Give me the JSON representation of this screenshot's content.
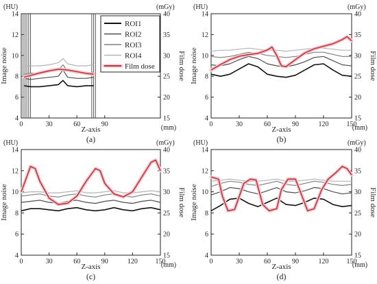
{
  "chart_data": [
    {
      "panel_label": "(a)",
      "type": "line",
      "xlabel": "Z-axis",
      "xunit": "(mm)",
      "ylabel": "Image noise",
      "yunit": "(HU)",
      "y2label": "Film dose",
      "y2unit": "(mGy)",
      "xlim": [
        0,
        150
      ],
      "ylim": [
        4,
        14
      ],
      "y2lim": [
        15,
        40
      ],
      "xticks": [
        "0",
        "30",
        "60",
        "90"
      ],
      "yticks": [
        "4",
        "6",
        "8",
        "10",
        "12",
        "14"
      ],
      "y2ticks": [
        "15",
        "20",
        "25",
        "30",
        "35",
        "40"
      ],
      "legend": {
        "position": "top-right",
        "entries": [
          "ROI1",
          "ROI2",
          "ROI3",
          "ROI4",
          "Film dose"
        ]
      },
      "markers_z": [
        2,
        4,
        6,
        8,
        10,
        76,
        78,
        80
      ],
      "series": [
        {
          "name": "ROI1",
          "axis": "left",
          "color": "#111111",
          "width": 1.6,
          "x": [
            3,
            10,
            20,
            30,
            40,
            45,
            50,
            60,
            70,
            78
          ],
          "y": [
            7.1,
            7.0,
            7.0,
            7.1,
            7.2,
            7.6,
            7.1,
            7.0,
            7.1,
            7.1
          ]
        },
        {
          "name": "ROI2",
          "axis": "left",
          "color": "#4d4d4d",
          "width": 1.2,
          "x": [
            3,
            10,
            20,
            30,
            40,
            45,
            50,
            60,
            70,
            78
          ],
          "y": [
            7.8,
            7.7,
            7.8,
            7.9,
            8.0,
            8.6,
            7.9,
            7.8,
            7.8,
            7.9
          ]
        },
        {
          "name": "ROI3",
          "axis": "left",
          "color": "#7f7f7f",
          "width": 1.2,
          "x": [
            3,
            10,
            20,
            30,
            40,
            45,
            50,
            60,
            70,
            78
          ],
          "y": [
            8.2,
            8.3,
            8.3,
            8.4,
            8.6,
            9.1,
            8.5,
            8.3,
            8.3,
            8.4
          ]
        },
        {
          "name": "ROI4",
          "axis": "left",
          "color": "#b3b3b3",
          "width": 1.2,
          "x": [
            3,
            10,
            20,
            30,
            40,
            45,
            50,
            60,
            70,
            78
          ],
          "y": [
            8.9,
            9.0,
            9.0,
            9.1,
            9.3,
            9.7,
            9.2,
            9.0,
            9.0,
            9.1
          ]
        },
        {
          "name": "Film dose",
          "axis": "right",
          "color": "#c0392b",
          "width": 1.6,
          "x": [
            3,
            10,
            20,
            30,
            40,
            50,
            60,
            70,
            78
          ],
          "y": [
            24.8,
            25.2,
            25.8,
            26.3,
            26.7,
            26.5,
            26.1,
            25.7,
            25.5
          ]
        }
      ]
    },
    {
      "panel_label": "(b)",
      "type": "line",
      "xlabel": "Z-axis",
      "xunit": "(mm)",
      "ylabel": "Image noise",
      "yunit": "(HU)",
      "y2label": "Film dose",
      "y2unit": "(mGy)",
      "xlim": [
        0,
        150
      ],
      "ylim": [
        4,
        14
      ],
      "y2lim": [
        15,
        40
      ],
      "xticks": [
        "0",
        "30",
        "60",
        "90",
        "120",
        "150"
      ],
      "yticks": [
        "4",
        "6",
        "8",
        "10",
        "12",
        "14"
      ],
      "y2ticks": [
        "15",
        "20",
        "25",
        "30",
        "35",
        "40"
      ],
      "series": [
        {
          "name": "ROI1",
          "axis": "left",
          "color": "#111111",
          "width": 1.6,
          "x": [
            0,
            10,
            20,
            30,
            40,
            50,
            60,
            70,
            80,
            90,
            100,
            110,
            120,
            130,
            140,
            150
          ],
          "y": [
            8.2,
            8.0,
            8.2,
            8.7,
            9.2,
            8.9,
            8.2,
            8.0,
            7.9,
            8.1,
            8.6,
            9.1,
            9.2,
            8.6,
            8.1,
            8.0
          ]
        },
        {
          "name": "ROI2",
          "axis": "left",
          "color": "#4d4d4d",
          "width": 1.2,
          "x": [
            0,
            10,
            20,
            30,
            40,
            50,
            60,
            70,
            80,
            90,
            100,
            110,
            120,
            130,
            140,
            150
          ],
          "y": [
            9.1,
            9.0,
            9.2,
            9.6,
            9.9,
            9.7,
            9.2,
            9.0,
            8.9,
            9.1,
            9.4,
            9.8,
            9.9,
            9.5,
            9.1,
            9.0
          ]
        },
        {
          "name": "ROI3",
          "axis": "left",
          "color": "#7f7f7f",
          "width": 1.2,
          "x": [
            0,
            10,
            20,
            30,
            40,
            50,
            60,
            70,
            80,
            90,
            100,
            110,
            120,
            130,
            140,
            150
          ],
          "y": [
            9.9,
            9.8,
            9.9,
            10.1,
            10.3,
            10.2,
            10.0,
            9.9,
            9.8,
            9.9,
            10.1,
            10.3,
            10.3,
            10.1,
            9.9,
            9.9
          ]
        },
        {
          "name": "ROI4",
          "axis": "left",
          "color": "#b3b3b3",
          "width": 1.2,
          "x": [
            0,
            10,
            20,
            30,
            40,
            50,
            60,
            70,
            80,
            90,
            100,
            110,
            120,
            130,
            140,
            150
          ],
          "y": [
            10.4,
            10.5,
            10.5,
            10.6,
            10.7,
            10.6,
            10.5,
            10.5,
            10.4,
            10.5,
            10.6,
            10.7,
            10.7,
            10.6,
            10.5,
            10.5
          ]
        },
        {
          "name": "Film dose",
          "axis": "right",
          "color": "#c0392b",
          "width": 1.6,
          "x": [
            0,
            10,
            20,
            30,
            40,
            50,
            60,
            65,
            70,
            75,
            80,
            90,
            100,
            110,
            120,
            130,
            140,
            145,
            150
          ],
          "y": [
            26.5,
            27.8,
            29.0,
            29.8,
            30.2,
            30.5,
            31.3,
            32.0,
            30.0,
            27.5,
            27.3,
            29.0,
            30.6,
            31.6,
            32.2,
            32.8,
            33.8,
            34.5,
            33.5
          ]
        }
      ]
    },
    {
      "panel_label": "(c)",
      "type": "line",
      "xlabel": "Z-axis",
      "xunit": "(mm)",
      "ylabel": "Image noise",
      "yunit": "(HU)",
      "y2label": "Film dose",
      "y2unit": "(mGy)",
      "xlim": [
        0,
        150
      ],
      "ylim": [
        4,
        14
      ],
      "y2lim": [
        15,
        40
      ],
      "xticks": [
        "0",
        "30",
        "60",
        "90",
        "120",
        "150"
      ],
      "yticks": [
        "4",
        "6",
        "8",
        "10",
        "12",
        "14"
      ],
      "y2ticks": [
        "15",
        "20",
        "25",
        "30",
        "35",
        "40"
      ],
      "series": [
        {
          "name": "ROI1",
          "axis": "left",
          "color": "#111111",
          "width": 1.6,
          "x": [
            0,
            10,
            20,
            30,
            40,
            50,
            60,
            70,
            80,
            90,
            100,
            110,
            120,
            130,
            140,
            150
          ],
          "y": [
            8.2,
            8.4,
            8.4,
            8.3,
            8.2,
            8.4,
            8.5,
            8.3,
            8.2,
            8.3,
            8.5,
            8.3,
            8.2,
            8.4,
            8.5,
            8.3
          ]
        },
        {
          "name": "ROI2",
          "axis": "left",
          "color": "#4d4d4d",
          "width": 1.2,
          "x": [
            0,
            10,
            20,
            30,
            40,
            50,
            60,
            70,
            80,
            90,
            100,
            110,
            120,
            130,
            140,
            150
          ],
          "y": [
            9.0,
            9.1,
            9.2,
            9.0,
            8.9,
            9.1,
            9.2,
            9.0,
            8.9,
            9.1,
            9.2,
            9.0,
            8.9,
            9.1,
            9.2,
            9.0
          ]
        },
        {
          "name": "ROI3",
          "axis": "left",
          "color": "#7f7f7f",
          "width": 1.2,
          "x": [
            0,
            10,
            20,
            30,
            40,
            50,
            60,
            70,
            80,
            90,
            100,
            110,
            120,
            130,
            140,
            150
          ],
          "y": [
            9.6,
            9.7,
            9.8,
            9.6,
            9.5,
            9.7,
            9.8,
            9.6,
            9.5,
            9.7,
            9.8,
            9.6,
            9.5,
            9.7,
            9.8,
            9.6
          ]
        },
        {
          "name": "ROI4",
          "axis": "left",
          "color": "#b3b3b3",
          "width": 1.2,
          "x": [
            0,
            10,
            20,
            30,
            40,
            50,
            60,
            70,
            80,
            90,
            100,
            110,
            120,
            130,
            140,
            150
          ],
          "y": [
            9.9,
            10.0,
            10.0,
            9.9,
            9.9,
            10.0,
            10.1,
            9.9,
            9.9,
            10.0,
            10.1,
            9.9,
            9.9,
            10.0,
            10.1,
            10.0
          ]
        },
        {
          "name": "Film dose",
          "axis": "right",
          "color": "#c0392b",
          "width": 1.6,
          "x": [
            0,
            5,
            10,
            15,
            20,
            30,
            40,
            50,
            60,
            70,
            80,
            85,
            90,
            100,
            110,
            120,
            130,
            140,
            145,
            150
          ],
          "y": [
            30.0,
            33.0,
            36.0,
            35.5,
            32.5,
            28.5,
            27.0,
            27.3,
            29.0,
            32.5,
            35.5,
            35.0,
            32.0,
            29.5,
            28.8,
            30.0,
            33.5,
            37.0,
            37.5,
            35.0
          ]
        }
      ]
    },
    {
      "panel_label": "(d)",
      "type": "line",
      "xlabel": "Z-axis",
      "xunit": "(mm)",
      "ylabel": "Image noise",
      "yunit": "(HU)",
      "y2label": "Film dose",
      "y2unit": "(mGy)",
      "xlim": [
        0,
        150
      ],
      "ylim": [
        4,
        14
      ],
      "y2lim": [
        15,
        40
      ],
      "xticks": [
        "0",
        "30",
        "60",
        "90",
        "120",
        "150"
      ],
      "yticks": [
        "4",
        "6",
        "8",
        "10",
        "12",
        "14"
      ],
      "y2ticks": [
        "15",
        "20",
        "25",
        "30",
        "35",
        "40"
      ],
      "series": [
        {
          "name": "ROI1",
          "axis": "left",
          "color": "#111111",
          "width": 1.6,
          "x": [
            0,
            10,
            20,
            30,
            40,
            50,
            60,
            70,
            80,
            90,
            100,
            110,
            120,
            130,
            140,
            150
          ],
          "y": [
            8.2,
            8.7,
            9.3,
            9.4,
            8.9,
            8.6,
            9.0,
            9.4,
            8.8,
            8.7,
            9.0,
            9.4,
            9.3,
            8.8,
            8.6,
            8.7
          ]
        },
        {
          "name": "ROI2",
          "axis": "left",
          "color": "#4d4d4d",
          "width": 1.2,
          "x": [
            0,
            10,
            20,
            30,
            40,
            50,
            60,
            70,
            80,
            90,
            100,
            110,
            120,
            130,
            140,
            150
          ],
          "y": [
            9.7,
            10.0,
            10.4,
            10.3,
            10.0,
            9.8,
            10.1,
            10.4,
            10.0,
            9.9,
            10.1,
            10.4,
            10.3,
            10.0,
            9.8,
            9.9
          ]
        },
        {
          "name": "ROI3",
          "axis": "left",
          "color": "#7f7f7f",
          "width": 1.2,
          "x": [
            0,
            10,
            20,
            30,
            40,
            50,
            60,
            70,
            80,
            90,
            100,
            110,
            120,
            130,
            140,
            150
          ],
          "y": [
            10.5,
            10.8,
            11.0,
            10.9,
            10.7,
            10.6,
            10.8,
            11.0,
            10.7,
            10.6,
            10.8,
            11.0,
            10.9,
            10.7,
            10.6,
            10.7
          ]
        },
        {
          "name": "ROI4",
          "axis": "left",
          "color": "#b3b3b3",
          "width": 1.2,
          "x": [
            0,
            10,
            20,
            30,
            40,
            50,
            60,
            70,
            80,
            90,
            100,
            110,
            120,
            130,
            140,
            150
          ],
          "y": [
            11.0,
            11.1,
            11.2,
            11.1,
            11.0,
            11.0,
            11.1,
            11.2,
            11.0,
            11.0,
            11.1,
            11.2,
            11.1,
            11.0,
            11.0,
            11.0
          ]
        },
        {
          "name": "Film dose",
          "axis": "right",
          "color": "#c0392b",
          "width": 1.6,
          "x": [
            0,
            8,
            12,
            18,
            25,
            35,
            42,
            48,
            55,
            62,
            70,
            75,
            82,
            90,
            97,
            103,
            110,
            118,
            125,
            133,
            140,
            145,
            150
          ],
          "y": [
            33.5,
            33.0,
            29.0,
            25.5,
            25.8,
            32.0,
            33.0,
            32.8,
            27.0,
            25.5,
            26.0,
            30.5,
            33.0,
            33.0,
            29.0,
            25.5,
            26.0,
            30.5,
            33.0,
            34.5,
            36.0,
            35.5,
            34.0
          ]
        }
      ]
    }
  ]
}
